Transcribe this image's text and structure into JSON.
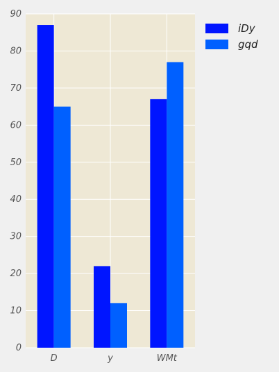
{
  "colors": {
    "figure_background": "#f0f0f0",
    "plot_background": "#eee8d5",
    "grid": "#ffffff",
    "tick_text": "#555555"
  },
  "chart_data": {
    "type": "bar",
    "categories": [
      "D",
      "y",
      "WMt"
    ],
    "series": [
      {
        "name": "iDy",
        "color": "#0015ff",
        "values": [
          87,
          22,
          67
        ]
      },
      {
        "name": "gqd",
        "color": "#0060ff",
        "values": [
          65,
          12,
          77
        ]
      }
    ],
    "title": "",
    "xlabel": "",
    "ylabel": "",
    "ylim": [
      0,
      90
    ],
    "yticks": [
      0,
      10,
      20,
      30,
      40,
      50,
      60,
      70,
      80,
      90
    ],
    "grid": true,
    "legend_position": "outside-right-top"
  }
}
